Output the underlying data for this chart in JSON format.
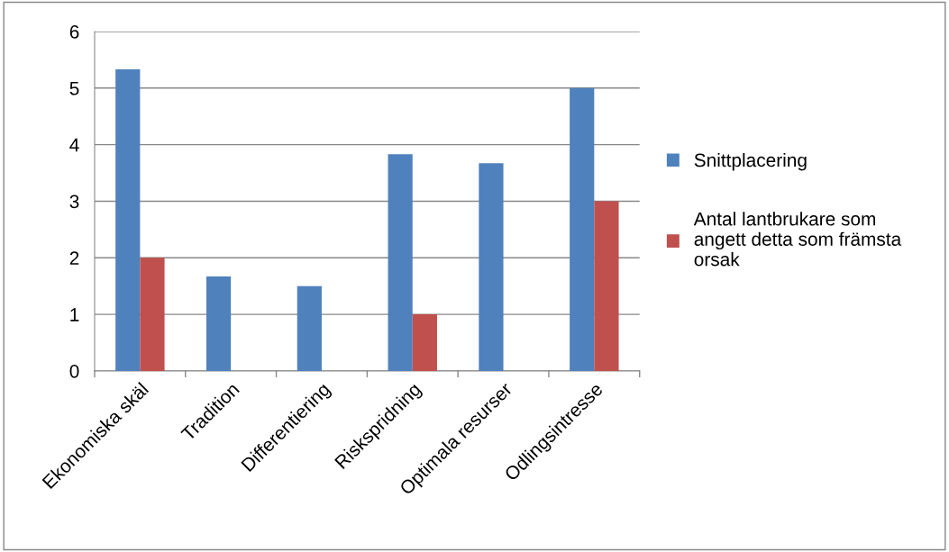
{
  "chart_data": {
    "type": "bar",
    "categories": [
      "Ekonomiska skäl",
      "Tradition",
      "Differentiering",
      "Riskspridning",
      "Optimala resurser",
      "Odlingsintresse"
    ],
    "series": [
      {
        "name": "Snittplacering",
        "color": "#4f81bd",
        "values": [
          5.33,
          1.67,
          1.5,
          3.83,
          3.67,
          5.0
        ]
      },
      {
        "name": "Antal lantbrukare som angett detta som främsta orsak",
        "color": "#c0504d",
        "values": [
          2,
          0,
          0,
          1,
          0,
          3
        ]
      }
    ],
    "ylim": [
      0,
      6
    ],
    "yticks": [
      0,
      1,
      2,
      3,
      4,
      5,
      6
    ],
    "grid": "y",
    "legend": "right"
  }
}
